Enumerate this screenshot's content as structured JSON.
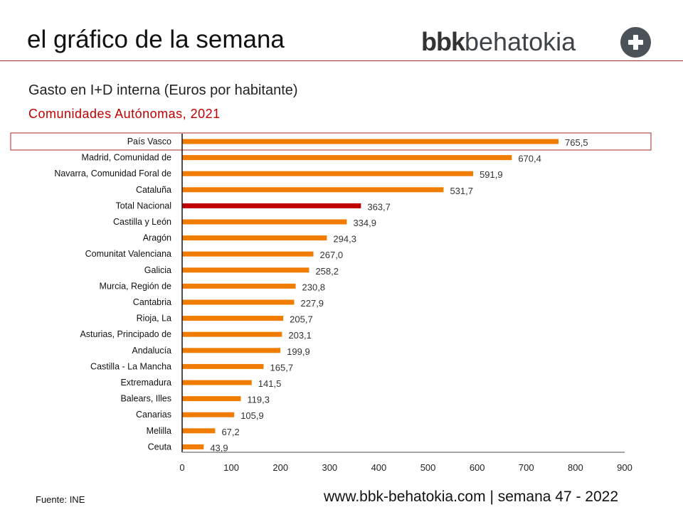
{
  "header": {
    "title": "el gráfico de la semana",
    "logo_bold": "bbk",
    "logo_light": "behatokia"
  },
  "footer": {
    "source": "Fuente: INE",
    "site": "www.bbk-behatokia.com | semana 47 - 2022"
  },
  "chart_data": {
    "type": "bar",
    "orientation": "horizontal",
    "title": "Gasto en I+D interna (Euros por habitante)",
    "subtitle": "Comunidades Autónomas, 2021",
    "categories": [
      "País Vasco",
      "Madrid, Comunidad de",
      "Navarra, Comunidad Foral de",
      "Cataluña",
      "Total Nacional",
      "Castilla y León",
      "Aragón",
      "Comunitat Valenciana",
      "Galicia",
      "Murcia, Región de",
      "Cantabria",
      "Rioja, La",
      "Asturias, Principado de",
      "Andalucía",
      "Castilla - La Mancha",
      "Extremadura",
      "Balears, Illes",
      "Canarias",
      "Melilla",
      "Ceuta"
    ],
    "values": [
      765.5,
      670.4,
      591.9,
      531.7,
      363.7,
      334.9,
      294.3,
      267.0,
      258.2,
      230.8,
      227.9,
      205.7,
      203.1,
      199.9,
      165.7,
      141.5,
      119.3,
      105.9,
      67.2,
      43.9
    ],
    "labels": [
      "765,5",
      "670,4",
      "591,9",
      "531,7",
      "363,7",
      "334,9",
      "294,3",
      "267,0",
      "258,2",
      "230,8",
      "227,9",
      "205,7",
      "203,1",
      "199,9",
      "165,7",
      "141,5",
      "119,3",
      "105,9",
      "67,2",
      "43,9"
    ],
    "highlight": "Total Nacional",
    "boxed": "País Vasco",
    "xlim": [
      0,
      900
    ],
    "xticks": [
      0,
      100,
      200,
      300,
      400,
      500,
      600,
      700,
      800,
      900
    ],
    "colors": {
      "bar": "#f07d00",
      "highlight": "#c00000",
      "box": "#a52a2a"
    }
  }
}
